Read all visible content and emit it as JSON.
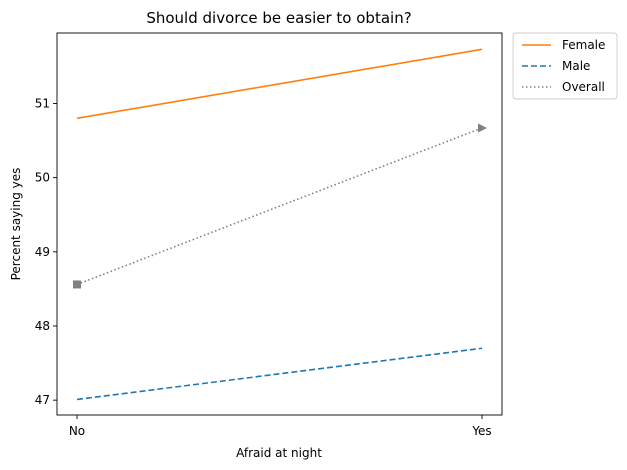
{
  "chart_data": {
    "type": "line",
    "title": "Should divorce be easier to obtain?",
    "xlabel": "Afraid at night",
    "ylabel": "Percent saying yes",
    "categories": [
      "No",
      "Yes"
    ],
    "ylim": [
      46.8,
      51.95
    ],
    "yticks": [
      47,
      48,
      49,
      50,
      51
    ],
    "grid": false,
    "legend": "outside-top-right",
    "series": [
      {
        "name": "Female",
        "values": [
          50.8,
          51.73
        ],
        "color": "#ff7f0e",
        "style": "solid",
        "marker": ""
      },
      {
        "name": "Male",
        "values": [
          47.01,
          47.7
        ],
        "color": "#1f77b4",
        "style": "dashed",
        "marker": ""
      },
      {
        "name": "Overall",
        "values": [
          48.56,
          50.67
        ],
        "color": "#808080",
        "style": "dotted",
        "marker": "square-triangle"
      }
    ]
  }
}
